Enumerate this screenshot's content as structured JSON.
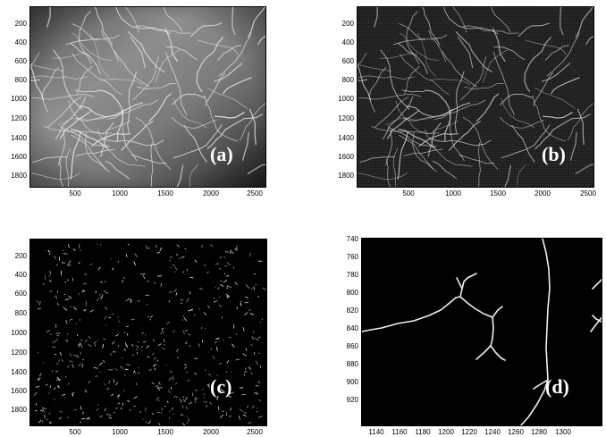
{
  "panels": [
    {
      "label": "(a)",
      "style": "grayscale-photo",
      "y_ticks": [
        "200",
        "400",
        "600",
        "800",
        "1000",
        "1200",
        "1400",
        "1600",
        "1800"
      ],
      "x_ticks": [
        "500",
        "1000",
        "1500",
        "2000",
        "2500"
      ]
    },
    {
      "label": "(b)",
      "style": "edge-enhanced",
      "y_ticks": [
        "200",
        "400",
        "600",
        "800",
        "1000",
        "1200",
        "1400",
        "1600",
        "1800"
      ],
      "x_ticks": [
        "500",
        "1000",
        "1500",
        "2000",
        "2500"
      ]
    },
    {
      "label": "(c)",
      "style": "binary-segments",
      "y_ticks": [
        "200",
        "400",
        "600",
        "800",
        "1000",
        "1200",
        "1400",
        "1600",
        "1800"
      ],
      "x_ticks": [
        "500",
        "1000",
        "1500",
        "2000",
        "2500"
      ]
    },
    {
      "label": "(d)",
      "style": "zoomed-skeleton",
      "y_ticks": [
        "740",
        "760",
        "780",
        "800",
        "820",
        "840",
        "860",
        "880",
        "900",
        "920"
      ],
      "x_ticks": [
        "1140",
        "1160",
        "1180",
        "1200",
        "1220",
        "1240",
        "1260",
        "1280",
        "1300"
      ]
    }
  ],
  "colors": {
    "background": "#ffffff",
    "plot_bg": "#000000",
    "fiber": "#e8e8e8"
  }
}
